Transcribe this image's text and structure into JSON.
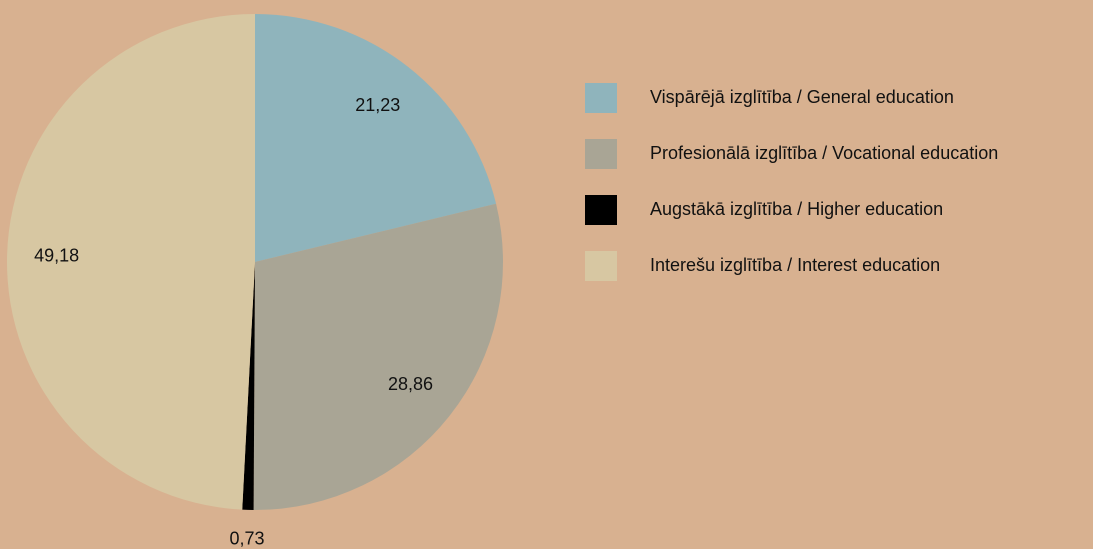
{
  "chart_data": {
    "type": "pie",
    "categories": [
      "Vispārējā izglītība / General education",
      "Profesionālā izglītība / Vocational education",
      "Augstākā izglītība / Higher education",
      "Interešu izglītība / Interest education"
    ],
    "values": [
      21.23,
      28.86,
      0.73,
      49.18
    ],
    "value_labels": [
      "21,23",
      "28,86",
      "0,73",
      "49,18"
    ],
    "colors": [
      "#8fb4bc",
      "#a9a595",
      "#000000",
      "#d7c7a2"
    ]
  }
}
